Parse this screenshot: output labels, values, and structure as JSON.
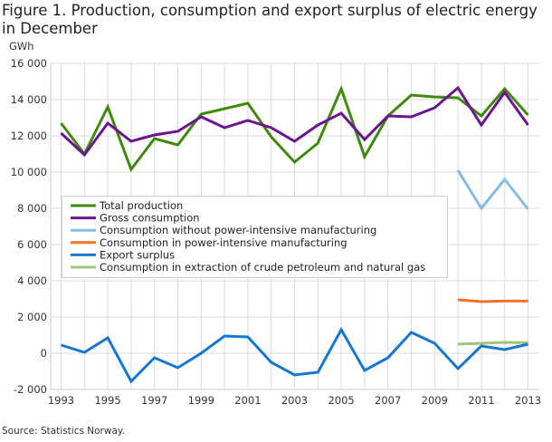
{
  "figure": {
    "title": "Figure 1. Production, consumption and export surplus of electric energy in December",
    "source": "Source: Statistics Norway."
  },
  "chart_data": {
    "type": "line",
    "title": "Figure 1. Production, consumption and export surplus of electric energy in December",
    "xlabel": "",
    "ylabel": "GWh",
    "x": [
      1993,
      1994,
      1995,
      1996,
      1997,
      1998,
      1999,
      2000,
      2001,
      2002,
      2003,
      2004,
      2005,
      2006,
      2007,
      2008,
      2009,
      2010,
      2011,
      2012,
      2013
    ],
    "x_tick_labels": [
      "1993",
      "1995",
      "1997",
      "1999",
      "2001",
      "2003",
      "2005",
      "2007",
      "2009",
      "2011",
      "2013"
    ],
    "ylim": [
      -2000,
      16000
    ],
    "y_ticks": [
      -2000,
      0,
      2000,
      4000,
      6000,
      8000,
      10000,
      12000,
      14000,
      16000
    ],
    "y_tick_labels": [
      "-2 000",
      "0",
      "2 000",
      "4 000",
      "6 000",
      "8 000",
      "10 000",
      "12 000",
      "14 000",
      "16 000"
    ],
    "grid": true,
    "legend_position": "center-left",
    "series": [
      {
        "name": "Total production",
        "color": "#3f8a0c",
        "values": [
          12700,
          11000,
          13600,
          10150,
          11850,
          11500,
          13200,
          13500,
          13800,
          11950,
          10550,
          11600,
          14600,
          10850,
          13100,
          14250,
          14150,
          14100,
          13100,
          14600,
          13150
        ]
      },
      {
        "name": "Gross consumption",
        "color": "#6b1590",
        "values": [
          12150,
          10950,
          12700,
          11700,
          12050,
          12250,
          13050,
          12450,
          12850,
          12450,
          11700,
          12600,
          13250,
          11800,
          13100,
          13050,
          13550,
          14650,
          12600,
          14400,
          12600
        ]
      },
      {
        "name": "Consumption without power-intensive manufacturing",
        "color": "#83bde6",
        "values": [
          null,
          null,
          null,
          null,
          null,
          null,
          null,
          null,
          null,
          null,
          null,
          null,
          null,
          null,
          null,
          null,
          null,
          10100,
          8000,
          9600,
          7950
        ]
      },
      {
        "name": "Consumption in power-intensive manufacturing",
        "color": "#f07227",
        "values": [
          null,
          null,
          null,
          null,
          null,
          null,
          null,
          null,
          null,
          null,
          null,
          null,
          null,
          null,
          null,
          null,
          null,
          2950,
          2850,
          2880,
          2880
        ]
      },
      {
        "name": "Export surplus",
        "color": "#1677d2",
        "values": [
          450,
          50,
          850,
          -1550,
          -250,
          -800,
          0,
          950,
          900,
          -500,
          -1200,
          -1050,
          1300,
          -950,
          -250,
          1150,
          550,
          -850,
          400,
          200,
          500
        ]
      },
      {
        "name": "Consumption in extraction of crude petroleum and natural gas",
        "color": "#9cc57a",
        "values": [
          null,
          null,
          null,
          null,
          null,
          null,
          null,
          null,
          null,
          null,
          null,
          null,
          null,
          null,
          null,
          null,
          null,
          500,
          550,
          600,
          580
        ]
      }
    ]
  }
}
